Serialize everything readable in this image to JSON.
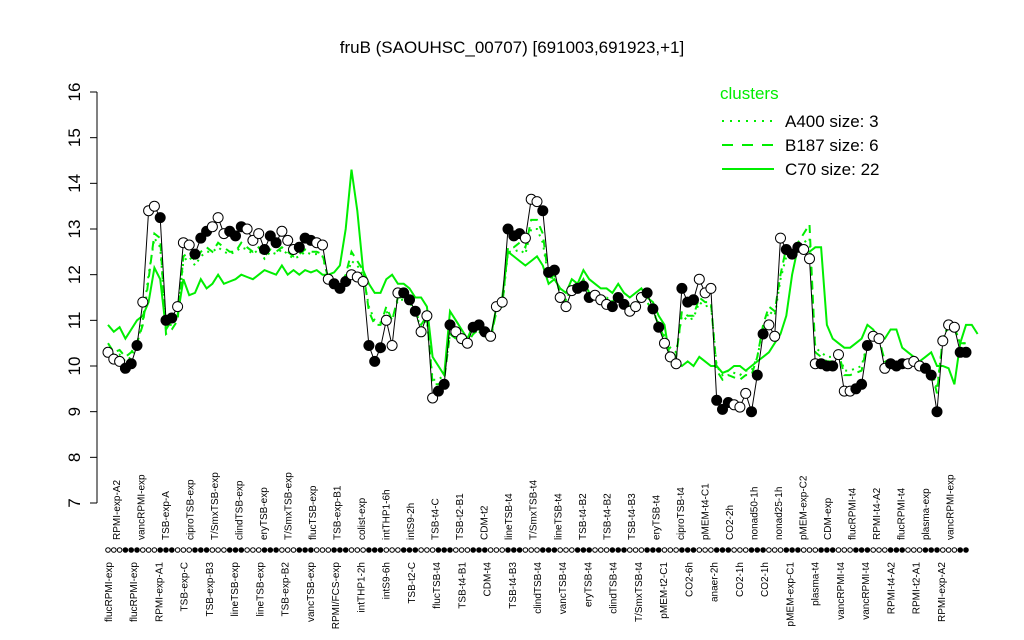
{
  "chart_data": {
    "type": "line",
    "title": "fruB (SAOUHSC_00707) [691003,691923,+1]",
    "xlabel": "",
    "ylabel": "",
    "ylim": [
      7,
      16
    ],
    "y_ticks": [
      7,
      8,
      9,
      10,
      11,
      12,
      13,
      14,
      15,
      16
    ],
    "grid": false,
    "legend_placement": "top-right",
    "legend": {
      "title": "clusters",
      "entries": [
        {
          "label": "A400 size: 3",
          "style": "dotted"
        },
        {
          "label": "B187 size: 6",
          "style": "dashed"
        },
        {
          "label": "C70 size: 22",
          "style": "solid"
        }
      ]
    },
    "colors": {
      "cluster": "#00ee00",
      "sample_line": "#000000"
    },
    "labels_top": [
      "RPMI-exp-A2",
      "vancRPMI-exp",
      "TSB-exp-A",
      "ciproTSB-exp",
      "T/SmxTSB-exp",
      "clindTSB-exp",
      "eryTSB-exp",
      "T/SmxTSB-exp",
      "flucTSB-exp",
      "TSB-exp-B1",
      "colist-exp",
      "intTHP1-6h",
      "intS9-2h",
      "TSB-t4-C",
      "TSB-t2-B1",
      "CDM-t2",
      "lineTSB-t4",
      "T/SmxTSB-t4",
      "lineTSB-t4",
      "TSB-t4-B2",
      "TSB-t4-B2",
      "TSB-t4-B3",
      "eryTSB-t4",
      "ciproTSB-t4",
      "pMEM-t4-C1",
      "CO2-2h",
      "nonad50-1h",
      "nonad25-1h",
      "pMEM-exp-C2",
      "CDM-exp",
      "flucRPMI-t4",
      "RPMI-t4-A2",
      "flucRPMI-t4",
      "plasma-exp",
      "vancRPMI-exp"
    ],
    "labels_bottom": [
      "flucRPMI-exp",
      "flucRPMI-exp",
      "RPMI-exp-A1",
      "TSB-exp-C",
      "TSB-exp-B3",
      "lineTSB-exp",
      "lineTSB-exp",
      "TSB-exp-B2",
      "vancTSB-exp",
      "RPMI/FCS-exp",
      "intTHP1-2h",
      "intS9-6h",
      "TSB-t2-C",
      "flucTSB-t4",
      "TSB-t4-B1",
      "CDM-t4",
      "TSB-t4-B3",
      "clindTSB-t4",
      "vancTSB-t4",
      "eryTSB-t4",
      "clindTSB-t4",
      "T/SmxTSB-t4",
      "pMEM-t2-C1",
      "CO2-6h",
      "anaer-2h",
      "CO2-1h",
      "CO2-1h",
      "pMEM-exp-C1",
      "plasma-t4",
      "vancRPMI-t4",
      "vancRPMI-t4",
      "RPMI-t4-A2",
      "RPMI-t2-A1",
      "RPMI-exp-A2"
    ],
    "series": [
      {
        "values": [
          10.3,
          10.15,
          10.1,
          9.95,
          10.05,
          10.45,
          11.4,
          13.4,
          13.5,
          13.25,
          11.0,
          11.05,
          11.3,
          12.7,
          12.65,
          12.45,
          12.8,
          12.95,
          13.05,
          13.25,
          12.9,
          12.95,
          12.85,
          13.05,
          13.0,
          12.75,
          12.9,
          12.55,
          12.85,
          12.7,
          12.95,
          12.75,
          12.55,
          12.6,
          12.8,
          12.75,
          12.7,
          12.65,
          11.9,
          11.8,
          11.7,
          11.85,
          12.0,
          11.95,
          11.85,
          10.45,
          10.1,
          10.4,
          11.0,
          10.45,
          11.6,
          11.6,
          11.45,
          11.2,
          10.75,
          11.1,
          9.3,
          9.45,
          9.6,
          10.9,
          10.75,
          10.6,
          10.5,
          10.85,
          10.9,
          10.75,
          10.65,
          11.3,
          11.4,
          13.0,
          12.85,
          12.9,
          12.8,
          13.65,
          13.6,
          13.4,
          12.05,
          12.1,
          11.5,
          11.3,
          11.65,
          11.7,
          11.75,
          11.5,
          11.55,
          11.45,
          11.35,
          11.3,
          11.5,
          11.35,
          11.2,
          11.3,
          11.5,
          11.6,
          11.25,
          10.85,
          10.5,
          10.2,
          10.05,
          11.7,
          11.4,
          11.45,
          11.9,
          11.6,
          11.7,
          9.25,
          9.05,
          9.2,
          9.15,
          9.1,
          9.4,
          9.0,
          9.8,
          10.7,
          10.9,
          10.65,
          12.8,
          12.55,
          12.45,
          12.6,
          12.55,
          12.35,
          10.05,
          10.05,
          10.0,
          10.0,
          10.25,
          9.45,
          9.45,
          9.5,
          9.6,
          10.45,
          10.65,
          10.6,
          9.95,
          10.05,
          10.0,
          10.05,
          10.05,
          10.1,
          10.0,
          9.95,
          9.8,
          9.0,
          10.55,
          10.9,
          10.85,
          10.3,
          10.3
        ]
      },
      {
        "name": "C70 size: 22",
        "values": [
          10.9,
          10.75,
          10.85,
          10.6,
          10.8,
          11.0,
          11.1,
          11.4,
          12.15,
          11.9,
          10.8,
          11.0,
          11.1,
          11.9,
          11.55,
          11.6,
          11.9,
          11.7,
          11.8,
          12.0,
          11.8,
          11.85,
          11.9,
          12.0,
          11.95,
          11.9,
          12.0,
          12.1,
          12.05,
          12.0,
          12.2,
          12.0,
          12.1,
          12.0,
          12.1,
          12.05,
          12.1,
          12.0,
          12.0,
          12.05,
          12.2,
          13.0,
          14.3,
          13.4,
          12.1,
          11.8,
          11.6,
          11.6,
          11.9,
          12.0,
          11.8,
          11.8,
          11.7,
          11.5,
          11.5,
          11.3,
          10.2,
          10.0,
          9.8,
          11.2,
          11.0,
          10.8,
          10.6,
          10.9,
          10.8,
          10.7,
          10.6,
          11.3,
          11.5,
          12.5,
          12.4,
          12.3,
          12.2,
          12.3,
          12.4,
          12.2,
          11.8,
          11.9,
          11.7,
          11.6,
          11.9,
          11.8,
          12.1,
          11.9,
          11.8,
          11.7,
          11.7,
          11.6,
          11.8,
          11.6,
          11.5,
          11.6,
          11.7,
          11.5,
          11.4,
          11.1,
          10.9,
          10.1,
          10.1,
          10.0,
          10.1,
          10.0,
          10.2,
          10.1,
          10.0,
          10.0,
          9.85,
          9.9,
          10.0,
          10.0,
          9.9,
          10.0,
          10.1,
          10.2,
          10.3,
          10.5,
          10.7,
          11.1,
          12.0,
          12.6,
          12.5,
          12.5,
          12.6,
          12.6,
          10.9,
          10.6,
          10.5,
          10.4,
          10.4,
          10.5,
          10.6,
          10.9,
          10.8,
          10.6,
          10.6,
          10.8,
          10.8,
          10.4,
          10.3,
          10.2,
          10.1,
          10.2,
          10.3,
          10.0,
          10.0,
          9.95,
          9.6,
          10.5,
          10.9,
          10.9,
          10.7
        ]
      },
      {
        "name": "B187 size: 6",
        "values": [
          10.5,
          10.3,
          10.35,
          10.2,
          10.3,
          10.5,
          10.9,
          11.9,
          12.9,
          12.8,
          10.7,
          10.8,
          11.0,
          12.4,
          12.5,
          12.3,
          12.5,
          12.6,
          12.5,
          12.7,
          12.6,
          12.5,
          12.5,
          12.7,
          12.6,
          12.5,
          12.6,
          12.4,
          12.55,
          12.5,
          12.6,
          12.5,
          12.4,
          12.45,
          12.55,
          12.5,
          12.5,
          12.45,
          11.9,
          11.85,
          11.75,
          12.0,
          12.5,
          12.3,
          12.1,
          11.2,
          10.9,
          10.9,
          11.3,
          11.0,
          11.5,
          11.5,
          11.4,
          11.2,
          10.9,
          11.1,
          9.6,
          9.6,
          9.7,
          10.7,
          10.6,
          10.5,
          10.5,
          10.7,
          10.8,
          10.7,
          10.6,
          11.2,
          11.3,
          12.6,
          12.6,
          12.7,
          12.6,
          13.2,
          13.2,
          12.9,
          11.9,
          12.0,
          11.6,
          11.4,
          11.8,
          11.7,
          11.9,
          11.6,
          11.6,
          11.5,
          11.5,
          11.4,
          11.6,
          11.4,
          11.3,
          11.4,
          11.5,
          11.4,
          11.2,
          10.9,
          10.6,
          10.3,
          10.2,
          11.2,
          11.1,
          11.1,
          11.5,
          11.4,
          11.4,
          9.9,
          9.7,
          9.8,
          9.75,
          9.7,
          9.8,
          9.8,
          10.2,
          10.9,
          11.3,
          11.2,
          12.0,
          12.6,
          12.5,
          12.7,
          12.9,
          13.1,
          10.3,
          10.2,
          10.1,
          10.1,
          10.3,
          9.8,
          9.8,
          9.85,
          9.9,
          10.5,
          10.6,
          10.6,
          10.1,
          10.1,
          10.1,
          10.1,
          10.1,
          10.2,
          10.0,
          10.0,
          9.9,
          9.4,
          10.6,
          10.9,
          10.85,
          10.5,
          10.5
        ]
      },
      {
        "name": "A400 size: 3",
        "values": [
          10.4,
          10.25,
          10.25,
          10.1,
          10.2,
          10.5,
          11.0,
          12.0,
          12.8,
          12.6,
          10.9,
          10.9,
          11.1,
          12.3,
          12.4,
          12.2,
          12.4,
          12.5,
          12.5,
          12.6,
          12.5,
          12.45,
          12.5,
          12.6,
          12.55,
          12.45,
          12.55,
          12.35,
          12.5,
          12.45,
          12.55,
          12.45,
          12.35,
          12.4,
          12.5,
          12.45,
          12.45,
          12.4,
          11.9,
          11.8,
          11.7,
          11.9,
          12.3,
          12.2,
          12.0,
          11.3,
          11.0,
          10.95,
          11.2,
          11.0,
          11.45,
          11.45,
          11.35,
          11.15,
          10.85,
          11.0,
          9.7,
          9.7,
          9.8,
          10.7,
          10.6,
          10.55,
          10.5,
          10.7,
          10.75,
          10.65,
          10.6,
          11.2,
          11.3,
          12.5,
          12.5,
          12.55,
          12.45,
          13.0,
          13.0,
          12.7,
          11.9,
          11.95,
          11.6,
          11.45,
          11.75,
          11.7,
          11.85,
          11.6,
          11.6,
          11.5,
          11.5,
          11.4,
          11.55,
          11.4,
          11.3,
          11.4,
          11.5,
          11.4,
          11.2,
          10.95,
          10.65,
          10.4,
          10.3,
          11.1,
          11.0,
          11.05,
          11.4,
          11.3,
          11.35,
          10.0,
          9.8,
          9.9,
          9.85,
          9.8,
          9.9,
          9.9,
          10.2,
          10.8,
          11.2,
          11.1,
          11.9,
          12.4,
          12.4,
          12.55,
          12.7,
          12.8,
          10.4,
          10.3,
          10.2,
          10.2,
          10.35,
          9.9,
          9.9,
          9.95,
          10.0,
          10.5,
          10.6,
          10.6,
          10.1,
          10.1,
          10.1,
          10.1,
          10.1,
          10.2,
          10.05,
          10.0,
          9.95,
          9.5,
          10.6,
          10.85,
          10.8,
          10.5,
          10.5
        ]
      }
    ]
  }
}
